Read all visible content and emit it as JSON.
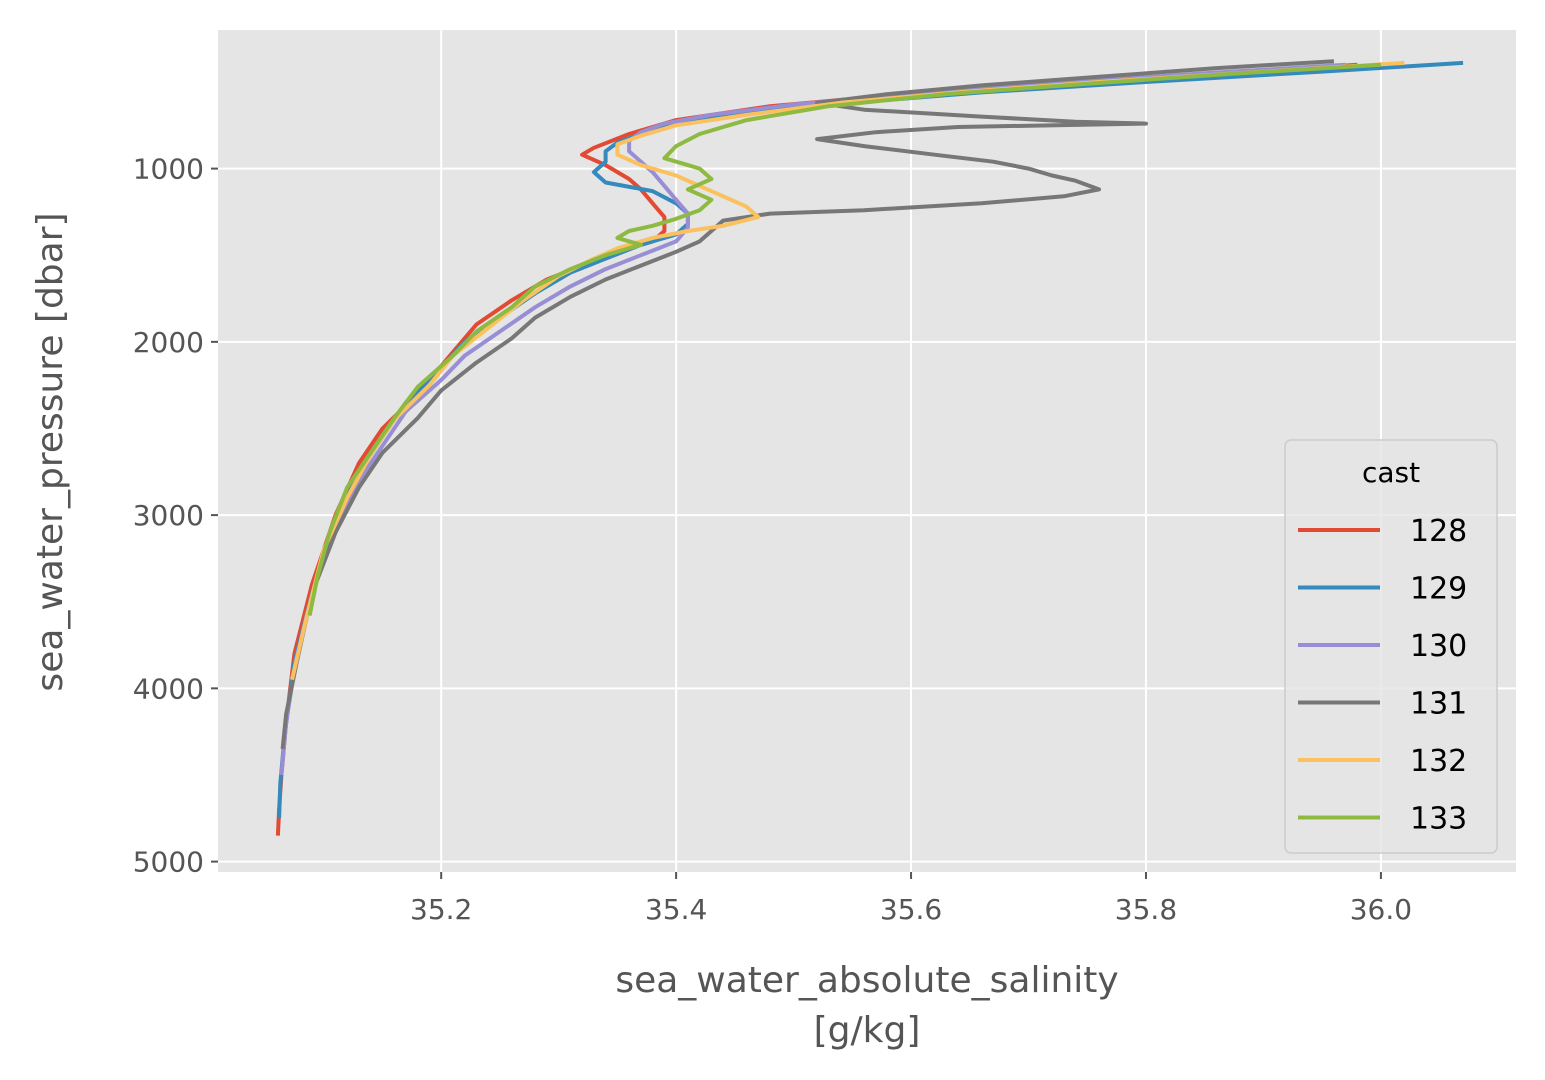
{
  "chart_data": {
    "type": "line",
    "xlabel": "sea_water_absolute_salinity",
    "xlabel_unit": "[g/kg]",
    "ylabel": "sea_water_pressure [dbar]",
    "xlim": [
      35.01,
      36.115
    ],
    "ylim": [
      5060,
      200
    ],
    "y_inverted": true,
    "grid": true,
    "x_ticks": [
      35.2,
      35.4,
      35.6,
      35.8,
      36.0
    ],
    "x_tick_labels": [
      "35.2",
      "35.4",
      "35.6",
      "35.8",
      "36.0"
    ],
    "y_ticks": [
      1000,
      2000,
      3000,
      4000,
      5000
    ],
    "y_tick_labels": [
      "1000",
      "2000",
      "3000",
      "4000",
      "5000"
    ],
    "legend": {
      "title": "cast",
      "position": "lower right"
    },
    "colors": {
      "background": "#e5e5e5",
      "grid": "#ffffff",
      "tick_text": "#555555"
    },
    "series": [
      {
        "name": "128",
        "color": "#e24a33",
        "points": [
          [
            35.98,
            400
          ],
          [
            35.85,
            460
          ],
          [
            35.7,
            520
          ],
          [
            35.58,
            580
          ],
          [
            35.48,
            640
          ],
          [
            35.4,
            720
          ],
          [
            35.36,
            800
          ],
          [
            35.33,
            880
          ],
          [
            35.32,
            920
          ],
          [
            35.34,
            980
          ],
          [
            35.36,
            1060
          ],
          [
            35.37,
            1120
          ],
          [
            35.38,
            1200
          ],
          [
            35.39,
            1280
          ],
          [
            35.39,
            1360
          ],
          [
            35.38,
            1420
          ],
          [
            35.35,
            1480
          ],
          [
            35.32,
            1560
          ],
          [
            35.29,
            1640
          ],
          [
            35.26,
            1760
          ],
          [
            35.23,
            1900
          ],
          [
            35.21,
            2060
          ],
          [
            35.18,
            2300
          ],
          [
            35.15,
            2500
          ],
          [
            35.13,
            2700
          ],
          [
            35.11,
            3000
          ],
          [
            35.09,
            3400
          ],
          [
            35.075,
            3800
          ],
          [
            35.068,
            4200
          ],
          [
            35.064,
            4500
          ],
          [
            35.062,
            4700
          ],
          [
            35.061,
            4850
          ]
        ]
      },
      {
        "name": "129",
        "color": "#348abd",
        "points": [
          [
            36.07,
            390
          ],
          [
            35.95,
            440
          ],
          [
            35.8,
            500
          ],
          [
            35.66,
            560
          ],
          [
            35.55,
            620
          ],
          [
            35.46,
            680
          ],
          [
            35.4,
            740
          ],
          [
            35.37,
            800
          ],
          [
            35.35,
            850
          ],
          [
            35.34,
            900
          ],
          [
            35.34,
            960
          ],
          [
            35.33,
            1020
          ],
          [
            35.34,
            1080
          ],
          [
            35.38,
            1130
          ],
          [
            35.4,
            1200
          ],
          [
            35.41,
            1260
          ],
          [
            35.41,
            1320
          ],
          [
            35.4,
            1380
          ],
          [
            35.37,
            1440
          ],
          [
            35.34,
            1520
          ],
          [
            35.31,
            1600
          ],
          [
            35.28,
            1720
          ],
          [
            35.25,
            1860
          ],
          [
            35.22,
            2000
          ],
          [
            35.2,
            2150
          ],
          [
            35.17,
            2350
          ],
          [
            35.15,
            2550
          ],
          [
            35.13,
            2750
          ],
          [
            35.11,
            3050
          ],
          [
            35.09,
            3450
          ],
          [
            35.075,
            3850
          ],
          [
            35.067,
            4250
          ],
          [
            35.063,
            4550
          ],
          [
            35.062,
            4750
          ]
        ]
      },
      {
        "name": "130",
        "color": "#988ed5",
        "points": [
          [
            35.97,
            400
          ],
          [
            35.85,
            450
          ],
          [
            35.72,
            510
          ],
          [
            35.6,
            570
          ],
          [
            35.5,
            630
          ],
          [
            35.43,
            690
          ],
          [
            35.39,
            740
          ],
          [
            35.37,
            790
          ],
          [
            35.36,
            840
          ],
          [
            35.36,
            900
          ],
          [
            35.37,
            960
          ],
          [
            35.38,
            1020
          ],
          [
            35.39,
            1100
          ],
          [
            35.4,
            1180
          ],
          [
            35.41,
            1260
          ],
          [
            35.41,
            1340
          ],
          [
            35.4,
            1420
          ],
          [
            35.37,
            1500
          ],
          [
            35.34,
            1580
          ],
          [
            35.31,
            1680
          ],
          [
            35.28,
            1800
          ],
          [
            35.25,
            1940
          ],
          [
            35.22,
            2080
          ],
          [
            35.2,
            2220
          ],
          [
            35.17,
            2400
          ],
          [
            35.15,
            2600
          ],
          [
            35.13,
            2800
          ],
          [
            35.11,
            3100
          ],
          [
            35.09,
            3450
          ],
          [
            35.076,
            3850
          ],
          [
            35.068,
            4200
          ],
          [
            35.064,
            4500
          ]
        ]
      },
      {
        "name": "131",
        "color": "#777777",
        "points": [
          [
            35.96,
            380
          ],
          [
            35.86,
            420
          ],
          [
            35.76,
            470
          ],
          [
            35.66,
            520
          ],
          [
            35.58,
            570
          ],
          [
            35.52,
            620
          ],
          [
            35.56,
            660
          ],
          [
            35.66,
            700
          ],
          [
            35.74,
            730
          ],
          [
            35.8,
            740
          ],
          [
            35.64,
            760
          ],
          [
            35.57,
            790
          ],
          [
            35.52,
            830
          ],
          [
            35.56,
            870
          ],
          [
            35.62,
            920
          ],
          [
            35.67,
            960
          ],
          [
            35.7,
            1000
          ],
          [
            35.72,
            1040
          ],
          [
            35.74,
            1070
          ],
          [
            35.76,
            1120
          ],
          [
            35.73,
            1160
          ],
          [
            35.66,
            1200
          ],
          [
            35.56,
            1240
          ],
          [
            35.48,
            1260
          ],
          [
            35.44,
            1300
          ],
          [
            35.43,
            1360
          ],
          [
            35.42,
            1420
          ],
          [
            35.4,
            1480
          ],
          [
            35.37,
            1560
          ],
          [
            35.34,
            1640
          ],
          [
            35.31,
            1740
          ],
          [
            35.28,
            1860
          ],
          [
            35.26,
            1980
          ],
          [
            35.23,
            2120
          ],
          [
            35.2,
            2280
          ],
          [
            35.18,
            2440
          ],
          [
            35.15,
            2640
          ],
          [
            35.13,
            2840
          ],
          [
            35.11,
            3100
          ],
          [
            35.09,
            3450
          ],
          [
            35.077,
            3850
          ],
          [
            35.068,
            4150
          ],
          [
            35.065,
            4350
          ]
        ]
      },
      {
        "name": "132",
        "color": "#fbc15e",
        "points": [
          [
            36.02,
            390
          ],
          [
            35.9,
            440
          ],
          [
            35.76,
            500
          ],
          [
            35.64,
            560
          ],
          [
            35.54,
            620
          ],
          [
            35.46,
            690
          ],
          [
            35.4,
            750
          ],
          [
            35.37,
            810
          ],
          [
            35.35,
            860
          ],
          [
            35.35,
            920
          ],
          [
            35.37,
            980
          ],
          [
            35.4,
            1040
          ],
          [
            35.42,
            1100
          ],
          [
            35.44,
            1160
          ],
          [
            35.46,
            1220
          ],
          [
            35.47,
            1280
          ],
          [
            35.44,
            1330
          ],
          [
            35.41,
            1360
          ],
          [
            35.38,
            1400
          ],
          [
            35.35,
            1460
          ],
          [
            35.33,
            1520
          ],
          [
            35.3,
            1620
          ],
          [
            35.27,
            1760
          ],
          [
            35.24,
            1920
          ],
          [
            35.21,
            2080
          ],
          [
            35.19,
            2250
          ],
          [
            35.16,
            2450
          ],
          [
            35.14,
            2650
          ],
          [
            35.12,
            2900
          ],
          [
            35.1,
            3200
          ],
          [
            35.085,
            3600
          ],
          [
            35.073,
            3950
          ]
        ]
      },
      {
        "name": "133",
        "color": "#8eba42",
        "points": [
          [
            36.0,
            400
          ],
          [
            35.88,
            450
          ],
          [
            35.75,
            510
          ],
          [
            35.63,
            570
          ],
          [
            35.53,
            640
          ],
          [
            35.46,
            720
          ],
          [
            35.42,
            800
          ],
          [
            35.4,
            870
          ],
          [
            35.39,
            940
          ],
          [
            35.42,
            1000
          ],
          [
            35.43,
            1060
          ],
          [
            35.41,
            1120
          ],
          [
            35.43,
            1180
          ],
          [
            35.42,
            1240
          ],
          [
            35.4,
            1290
          ],
          [
            35.38,
            1330
          ],
          [
            35.36,
            1360
          ],
          [
            35.35,
            1400
          ],
          [
            35.37,
            1440
          ],
          [
            35.34,
            1500
          ],
          [
            35.31,
            1580
          ],
          [
            35.28,
            1680
          ],
          [
            35.26,
            1800
          ],
          [
            35.23,
            1940
          ],
          [
            35.21,
            2080
          ],
          [
            35.18,
            2260
          ],
          [
            35.16,
            2440
          ],
          [
            35.14,
            2640
          ],
          [
            35.12,
            2840
          ],
          [
            35.105,
            3100
          ],
          [
            35.095,
            3350
          ],
          [
            35.088,
            3580
          ]
        ]
      }
    ]
  }
}
